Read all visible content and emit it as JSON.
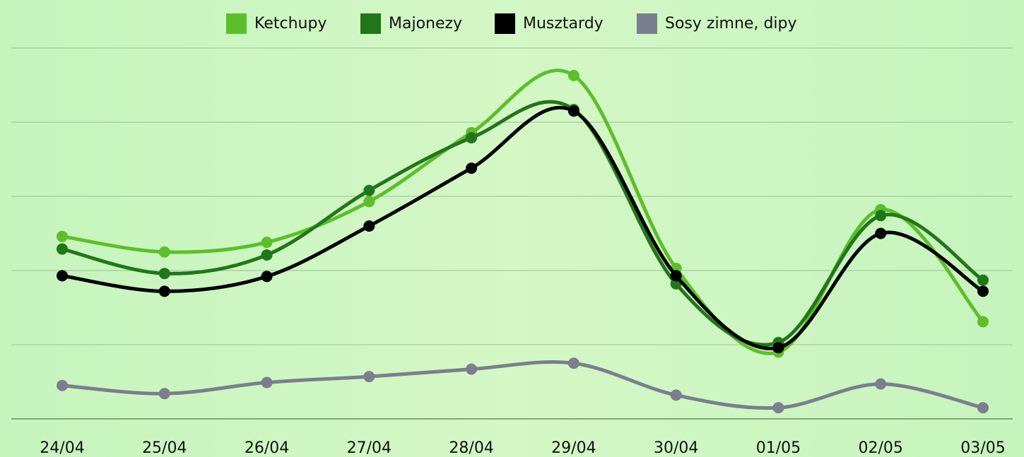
{
  "chart_data": {
    "type": "line",
    "categories": [
      "24/04",
      "25/04",
      "26/04",
      "27/04",
      "28/04",
      "29/04",
      "30/04",
      "01/05",
      "02/05",
      "03/05"
    ],
    "series": [
      {
        "name": "Ketchupy",
        "color": "#5cbf2a",
        "values": [
          2.46,
          2.25,
          2.38,
          2.93,
          3.86,
          4.63,
          2.03,
          0.9,
          2.82,
          1.31
        ]
      },
      {
        "name": "Majonezy",
        "color": "#22761a",
        "values": [
          2.29,
          1.96,
          2.21,
          3.08,
          3.79,
          4.17,
          1.82,
          1.03,
          2.74,
          1.87
        ]
      },
      {
        "name": "Musztardy",
        "color": "#000000",
        "values": [
          1.93,
          1.72,
          1.92,
          2.6,
          3.38,
          4.15,
          1.93,
          0.96,
          2.5,
          1.72
        ]
      },
      {
        "name": "Sosy zimne, dipy",
        "color": "#7b7e8e",
        "values": [
          0.45,
          0.34,
          0.49,
          0.57,
          0.67,
          0.75,
          0.32,
          0.15,
          0.47,
          0.15
        ]
      }
    ],
    "ylim": [
      0,
      5
    ],
    "yticks": [
      0,
      1,
      2,
      3,
      4,
      5
    ],
    "grid": true
  }
}
